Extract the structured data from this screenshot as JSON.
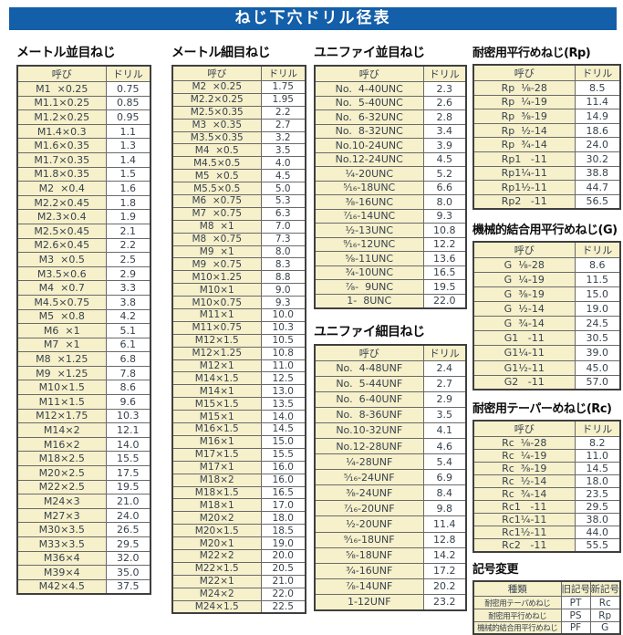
{
  "title": "ねじ下穴ドリル径表",
  "colors": {
    "accent_blue": "#145fa9",
    "cell_cream": "#f6f0cb"
  },
  "headers": {
    "name": "呼び",
    "drill": "ドリル"
  },
  "sections": {
    "metric_coarse": {
      "title": "メートル並目ねじ",
      "rows": [
        [
          "M1  ×0.25",
          "0.75"
        ],
        [
          "M1.1×0.25",
          "0.85"
        ],
        [
          "M1.2×0.25",
          "0.95"
        ],
        [
          "M1.4×0.3",
          "1.1"
        ],
        [
          "M1.6×0.35",
          "1.3"
        ],
        [
          "M1.7×0.35",
          "1.4"
        ],
        [
          "M1.8×0.35",
          "1.5"
        ],
        [
          "M2  ×0.4",
          "1.6"
        ],
        [
          "M2.2×0.45",
          "1.8"
        ],
        [
          "M2.3×0.4",
          "1.9"
        ],
        [
          "M2.5×0.45",
          "2.1"
        ],
        [
          "M2.6×0.45",
          "2.2"
        ],
        [
          "M3  ×0.5",
          "2.5"
        ],
        [
          "M3.5×0.6",
          "2.9"
        ],
        [
          "M4  ×0.7",
          "3.3"
        ],
        [
          "M4.5×0.75",
          "3.8"
        ],
        [
          "M5  ×0.8",
          "4.2"
        ],
        [
          "M6  ×1",
          "5.1"
        ],
        [
          "M7  ×1",
          "6.1"
        ],
        [
          "M8  ×1.25",
          "6.8"
        ],
        [
          "M9  ×1.25",
          "7.8"
        ],
        [
          "M10×1.5",
          "8.6"
        ],
        [
          "M11×1.5",
          "9.6"
        ],
        [
          "M12×1.75",
          "10.3"
        ],
        [
          "M14×2",
          "12.1"
        ],
        [
          "M16×2",
          "14.0"
        ],
        [
          "M18×2.5",
          "15.5"
        ],
        [
          "M20×2.5",
          "17.5"
        ],
        [
          "M22×2.5",
          "19.5"
        ],
        [
          "M24×3",
          "21.0"
        ],
        [
          "M27×3",
          "24.0"
        ],
        [
          "M30×3.5",
          "26.5"
        ],
        [
          "M33×3.5",
          "29.5"
        ],
        [
          "M36×4",
          "32.0"
        ],
        [
          "M39×4",
          "35.0"
        ],
        [
          "M42×4.5",
          "37.5"
        ]
      ]
    },
    "metric_fine": {
      "title": "メートル細目ねじ",
      "rows": [
        [
          "M2  ×0.25",
          "1.75"
        ],
        [
          "M2.2×0.25",
          "1.95"
        ],
        [
          "M2.5×0.35",
          "2.2"
        ],
        [
          "M3  ×0.35",
          "2.7"
        ],
        [
          "M3.5×0.35",
          "3.2"
        ],
        [
          "M4  ×0.5",
          "3.5"
        ],
        [
          "M4.5×0.5",
          "4.0"
        ],
        [
          "M5  ×0.5",
          "4.5"
        ],
        [
          "M5.5×0.5",
          "5.0"
        ],
        [
          "M6  ×0.75",
          "5.3"
        ],
        [
          "M7  ×0.75",
          "6.3"
        ],
        [
          "M8  ×1",
          "7.0"
        ],
        [
          "M8  ×0.75",
          "7.3"
        ],
        [
          "M9  ×1",
          "8.0"
        ],
        [
          "M9  ×0.75",
          "8.3"
        ],
        [
          "M10×1.25",
          "8.8"
        ],
        [
          "M10×1",
          "9.0"
        ],
        [
          "M10×0.75",
          "9.3"
        ],
        [
          "M11×1",
          "10.0"
        ],
        [
          "M11×0.75",
          "10.3"
        ],
        [
          "M12×1.5",
          "10.5"
        ],
        [
          "M12×1.25",
          "10.8"
        ],
        [
          "M12×1",
          "11.0"
        ],
        [
          "M14×1.5",
          "12.5"
        ],
        [
          "M14×1",
          "13.0"
        ],
        [
          "M15×1.5",
          "13.5"
        ],
        [
          "M15×1",
          "14.0"
        ],
        [
          "M16×1.5",
          "14.5"
        ],
        [
          "M16×1",
          "15.0"
        ],
        [
          "M17×1.5",
          "15.5"
        ],
        [
          "M17×1",
          "16.0"
        ],
        [
          "M18×2",
          "16.0"
        ],
        [
          "M18×1.5",
          "16.5"
        ],
        [
          "M18×1",
          "17.0"
        ],
        [
          "M20×2",
          "18.0"
        ],
        [
          "M20×1.5",
          "18.5"
        ],
        [
          "M20×1",
          "19.0"
        ],
        [
          "M22×2",
          "20.0"
        ],
        [
          "M22×1.5",
          "20.5"
        ],
        [
          "M22×1",
          "21.0"
        ],
        [
          "M24×2",
          "22.0"
        ],
        [
          "M24×1.5",
          "22.5"
        ]
      ]
    },
    "unified_coarse": {
      "title": "ユニファイ並目ねじ",
      "rows": [
        [
          "No.  4-40UNC",
          "2.3"
        ],
        [
          "No.  5-40UNC",
          "2.6"
        ],
        [
          "No.  6-32UNC",
          "2.8"
        ],
        [
          "No.  8-32UNC",
          "3.4"
        ],
        [
          "No.10-24UNC",
          "3.9"
        ],
        [
          "No.12-24UNC",
          "4.5"
        ],
        [
          "¹⁄₄-20UNC",
          "5.2"
        ],
        [
          "⁵⁄₁₆-18UNC",
          "6.6"
        ],
        [
          "³⁄₈-16UNC",
          "8.0"
        ],
        [
          "⁷⁄₁₆-14UNC",
          "9.3"
        ],
        [
          "¹⁄₂-13UNC",
          "10.8"
        ],
        [
          "⁹⁄₁₆-12UNC",
          "12.2"
        ],
        [
          "⁵⁄₈-11UNC",
          "13.6"
        ],
        [
          "³⁄₄-10UNC",
          "16.5"
        ],
        [
          "⁷⁄₈-  9UNC",
          "19.5"
        ],
        [
          "1-  8UNC",
          "22.0"
        ]
      ]
    },
    "unified_fine": {
      "title": "ユニファイ細目ねじ",
      "rows": [
        [
          "No.  4-48UNF",
          "2.4"
        ],
        [
          "No.  5-44UNF",
          "2.7"
        ],
        [
          "No.  6-40UNF",
          "2.9"
        ],
        [
          "No.  8-36UNF",
          "3.5"
        ],
        [
          "No.10-32UNF",
          "4.1"
        ],
        [
          "No.12-28UNF",
          "4.6"
        ],
        [
          "¹⁄₄-28UNF",
          "5.4"
        ],
        [
          "⁵⁄₁₆-24UNF",
          "6.9"
        ],
        [
          "³⁄₈-24UNF",
          "8.4"
        ],
        [
          "⁷⁄₁₆-20UNF",
          "9.8"
        ],
        [
          "¹⁄₂-20UNF",
          "11.4"
        ],
        [
          "⁹⁄₁₆-18UNF",
          "12.8"
        ],
        [
          "⁵⁄₈-18UNF",
          "14.2"
        ],
        [
          "³⁄₄-16UNF",
          "17.2"
        ],
        [
          "⁷⁄₈-14UNF",
          "20.2"
        ],
        [
          "1-12UNF",
          "23.2"
        ]
      ]
    },
    "rp": {
      "title": "耐密用平行めねじ(Rp)",
      "rows": [
        [
          "Rp  ¹⁄₈-28",
          "8.5"
        ],
        [
          "Rp  ¹⁄₄-19",
          "11.4"
        ],
        [
          "Rp  ³⁄₈-19",
          "14.9"
        ],
        [
          "Rp  ¹⁄₂-14",
          "18.6"
        ],
        [
          "Rp  ³⁄₄-14",
          "24.0"
        ],
        [
          "Rp1   -11",
          "30.2"
        ],
        [
          "Rp1¹⁄₄-11",
          "38.8"
        ],
        [
          "Rp1¹⁄₂-11",
          "44.7"
        ],
        [
          "Rp2   -11",
          "56.5"
        ]
      ]
    },
    "g": {
      "title": "機械的結合用平行めねじ(G)",
      "rows": [
        [
          "G  ¹⁄₈-28",
          "8.6"
        ],
        [
          "G  ¹⁄₄-19",
          "11.5"
        ],
        [
          "G  ³⁄₈-19",
          "15.0"
        ],
        [
          "G  ¹⁄₂-14",
          "19.0"
        ],
        [
          "G  ³⁄₄-14",
          "24.5"
        ],
        [
          "G1   -11",
          "30.5"
        ],
        [
          "G1¹⁄₄-11",
          "39.0"
        ],
        [
          "G1¹⁄₂-11",
          "45.0"
        ],
        [
          "G2   -11",
          "57.0"
        ]
      ]
    },
    "rc": {
      "title": "耐密用テーパーめねじ(Rc)",
      "rows": [
        [
          "Rc  ¹⁄₈-28",
          "8.2"
        ],
        [
          "Rc  ¹⁄₄-19",
          "11.0"
        ],
        [
          "Rc  ³⁄₈-19",
          "14.5"
        ],
        [
          "Rc  ¹⁄₂-14",
          "18.0"
        ],
        [
          "Rc  ³⁄₄-14",
          "23.5"
        ],
        [
          "Rc1   -11",
          "29.5"
        ],
        [
          "Rc1¹⁄₄-11",
          "38.0"
        ],
        [
          "Rc1¹⁄₂-11",
          "44.0"
        ],
        [
          "Rc2   -11",
          "55.5"
        ]
      ]
    },
    "symbol_change": {
      "title": "記号変更",
      "headers": [
        "種類",
        "旧記号",
        "新記号"
      ],
      "rows": [
        [
          "耐密用テーパめねじ",
          "PT",
          "Rc"
        ],
        [
          "耐密用平行めねじ",
          "PS",
          "Rp"
        ],
        [
          "機械的結合用平行めねじ",
          "PF",
          "G"
        ]
      ]
    }
  }
}
